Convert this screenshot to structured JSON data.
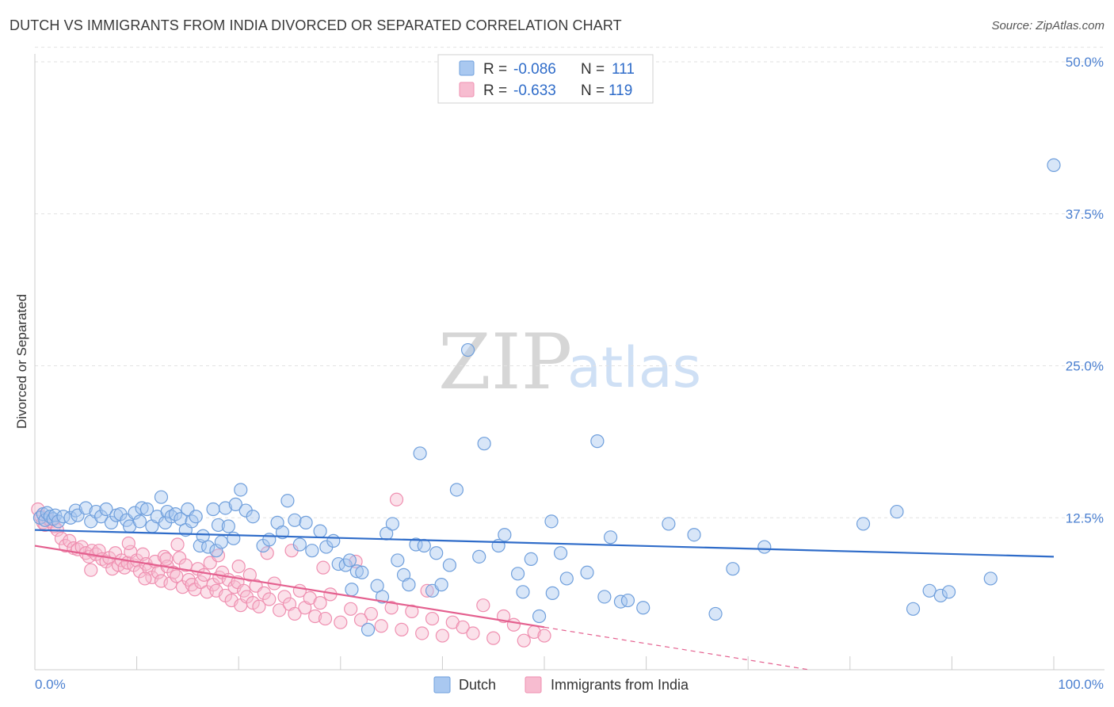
{
  "title": "DUTCH VS IMMIGRANTS FROM INDIA DIVORCED OR SEPARATED CORRELATION CHART",
  "source": "Source: ZipAtlas.com",
  "watermark": {
    "zip": "ZIP",
    "atlas": "atlas"
  },
  "legend": {
    "series": [
      {
        "r_label": "R =",
        "r_value": "-0.086",
        "n_label": "N =",
        "n_value": "111"
      },
      {
        "r_label": "R =",
        "r_value": "-0.633",
        "n_label": "N =",
        "n_value": "119"
      }
    ]
  },
  "chart_data": {
    "type": "scatter",
    "title": "DUTCH VS IMMIGRANTS FROM INDIA DIVORCED OR SEPARATED CORRELATION CHART",
    "xlabel": "",
    "ylabel": "Divorced or Separated",
    "xlim": [
      0,
      100
    ],
    "ylim": [
      0,
      50
    ],
    "x_tick_labels": [
      "0.0%",
      "100.0%"
    ],
    "y_ticks": [
      12.5,
      25.0,
      37.5,
      50.0
    ],
    "y_tick_labels": [
      "12.5%",
      "25.0%",
      "37.5%",
      "50.0%"
    ],
    "grid": true,
    "colors": {
      "dutch_fill": "#a9c8f0",
      "dutch_stroke": "#6f9fdc",
      "dutch_line": "#2f6cc9",
      "india_fill": "#f7bcd0",
      "india_stroke": "#ef8fb0",
      "india_line": "#e4608f"
    },
    "series": [
      {
        "name": "Dutch",
        "trend": {
          "x0": 0,
          "y0": 11.5,
          "x1": 100,
          "y1": 9.3
        },
        "points": [
          [
            0.5,
            12.5
          ],
          [
            0.8,
            12.8
          ],
          [
            1.0,
            12.3
          ],
          [
            1.2,
            12.9
          ],
          [
            1.5,
            12.6
          ],
          [
            1.8,
            12.4
          ],
          [
            2.0,
            12.7
          ],
          [
            2.3,
            12.2
          ],
          [
            2.8,
            12.6
          ],
          [
            3.5,
            12.5
          ],
          [
            4.0,
            13.1
          ],
          [
            4.2,
            12.7
          ],
          [
            5.0,
            13.3
          ],
          [
            5.5,
            12.2
          ],
          [
            6.0,
            13.0
          ],
          [
            6.5,
            12.6
          ],
          [
            7.0,
            13.2
          ],
          [
            7.5,
            12.1
          ],
          [
            8.0,
            12.7
          ],
          [
            8.4,
            12.8
          ],
          [
            9.0,
            12.3
          ],
          [
            9.3,
            11.8
          ],
          [
            9.8,
            12.9
          ],
          [
            10.3,
            12.2
          ],
          [
            10.5,
            13.3
          ],
          [
            11.0,
            13.2
          ],
          [
            11.5,
            11.8
          ],
          [
            12.0,
            12.6
          ],
          [
            12.4,
            14.2
          ],
          [
            12.8,
            12.1
          ],
          [
            13.0,
            13.0
          ],
          [
            13.4,
            12.6
          ],
          [
            13.8,
            12.8
          ],
          [
            14.3,
            12.4
          ],
          [
            14.8,
            11.5
          ],
          [
            15.0,
            13.2
          ],
          [
            15.4,
            12.2
          ],
          [
            15.8,
            12.6
          ],
          [
            16.2,
            10.2
          ],
          [
            16.5,
            11.0
          ],
          [
            17.0,
            10.1
          ],
          [
            17.5,
            13.2
          ],
          [
            17.8,
            9.8
          ],
          [
            18.0,
            11.9
          ],
          [
            18.3,
            10.5
          ],
          [
            18.7,
            13.3
          ],
          [
            19.0,
            11.8
          ],
          [
            19.5,
            10.8
          ],
          [
            19.7,
            13.6
          ],
          [
            20.2,
            14.8
          ],
          [
            20.7,
            13.1
          ],
          [
            21.4,
            12.6
          ],
          [
            22.4,
            10.2
          ],
          [
            23.0,
            10.7
          ],
          [
            23.8,
            12.1
          ],
          [
            24.3,
            11.3
          ],
          [
            24.8,
            13.9
          ],
          [
            25.5,
            12.3
          ],
          [
            26.0,
            10.3
          ],
          [
            26.6,
            12.1
          ],
          [
            27.2,
            9.8
          ],
          [
            28.0,
            11.4
          ],
          [
            28.6,
            10.1
          ],
          [
            29.3,
            10.6
          ],
          [
            29.8,
            8.7
          ],
          [
            30.5,
            8.6
          ],
          [
            30.9,
            9.0
          ],
          [
            31.1,
            6.6
          ],
          [
            31.6,
            8.1
          ],
          [
            32.1,
            8.0
          ],
          [
            32.7,
            3.3
          ],
          [
            33.6,
            6.9
          ],
          [
            34.1,
            6.0
          ],
          [
            34.5,
            11.2
          ],
          [
            35.1,
            12.0
          ],
          [
            35.6,
            9.0
          ],
          [
            36.2,
            7.8
          ],
          [
            36.7,
            7.0
          ],
          [
            37.4,
            10.3
          ],
          [
            37.8,
            17.8
          ],
          [
            38.2,
            10.2
          ],
          [
            39.0,
            6.5
          ],
          [
            39.4,
            9.6
          ],
          [
            39.9,
            7.0
          ],
          [
            40.7,
            8.6
          ],
          [
            41.4,
            14.8
          ],
          [
            42.5,
            26.3
          ],
          [
            43.6,
            9.3
          ],
          [
            44.1,
            18.6
          ],
          [
            45.5,
            10.2
          ],
          [
            46.1,
            11.1
          ],
          [
            47.4,
            7.9
          ],
          [
            47.9,
            6.4
          ],
          [
            48.7,
            9.1
          ],
          [
            49.5,
            4.4
          ],
          [
            50.7,
            12.2
          ],
          [
            50.8,
            6.3
          ],
          [
            51.6,
            9.6
          ],
          [
            52.2,
            7.5
          ],
          [
            54.2,
            8.0
          ],
          [
            55.2,
            18.8
          ],
          [
            55.9,
            6.0
          ],
          [
            56.5,
            10.9
          ],
          [
            57.5,
            5.6
          ],
          [
            58.2,
            5.7
          ],
          [
            59.7,
            5.1
          ],
          [
            62.2,
            12.0
          ],
          [
            64.7,
            11.1
          ],
          [
            66.8,
            4.6
          ],
          [
            68.5,
            8.3
          ],
          [
            71.6,
            10.1
          ],
          [
            81.3,
            12.0
          ],
          [
            84.6,
            13.0
          ],
          [
            86.2,
            5.0
          ],
          [
            87.8,
            6.5
          ],
          [
            88.9,
            6.1
          ],
          [
            89.7,
            6.4
          ],
          [
            93.8,
            7.5
          ],
          [
            100.0,
            41.5
          ]
        ]
      },
      {
        "name": "Immigrants from India",
        "trend": {
          "x0": 0,
          "y0": 10.2,
          "x1": 50,
          "y1": 3.5
        },
        "trend_dashed": {
          "x0": 50,
          "y0": 3.5,
          "x1": 76,
          "y1": 0
        },
        "points": [
          [
            0.3,
            13.2
          ],
          [
            0.6,
            12.6
          ],
          [
            0.8,
            12.1
          ],
          [
            1.0,
            11.9
          ],
          [
            1.3,
            12.4
          ],
          [
            1.6,
            12.2
          ],
          [
            1.9,
            11.8
          ],
          [
            2.2,
            11.5
          ],
          [
            2.6,
            10.8
          ],
          [
            3.0,
            10.2
          ],
          [
            3.4,
            10.6
          ],
          [
            3.8,
            10.0
          ],
          [
            4.2,
            9.9
          ],
          [
            4.6,
            10.1
          ],
          [
            5.0,
            9.6
          ],
          [
            5.3,
            9.3
          ],
          [
            5.6,
            9.8
          ],
          [
            6.0,
            9.5
          ],
          [
            6.3,
            9.8
          ],
          [
            6.6,
            9.1
          ],
          [
            7.0,
            8.9
          ],
          [
            7.3,
            9.2
          ],
          [
            7.6,
            8.3
          ],
          [
            7.9,
            9.6
          ],
          [
            8.2,
            8.6
          ],
          [
            8.5,
            9.0
          ],
          [
            8.8,
            8.4
          ],
          [
            9.1,
            8.8
          ],
          [
            9.4,
            9.7
          ],
          [
            9.7,
            8.6
          ],
          [
            10.0,
            9.0
          ],
          [
            10.3,
            8.1
          ],
          [
            10.6,
            9.5
          ],
          [
            10.9,
            8.7
          ],
          [
            11.2,
            8.3
          ],
          [
            11.5,
            7.6
          ],
          [
            11.8,
            8.9
          ],
          [
            12.1,
            8.0
          ],
          [
            12.4,
            7.3
          ],
          [
            12.7,
            9.3
          ],
          [
            13.0,
            8.5
          ],
          [
            13.3,
            7.1
          ],
          [
            13.6,
            8.0
          ],
          [
            13.9,
            7.7
          ],
          [
            14.2,
            9.2
          ],
          [
            14.5,
            6.8
          ],
          [
            14.8,
            8.6
          ],
          [
            15.1,
            7.4
          ],
          [
            15.4,
            7.0
          ],
          [
            15.7,
            6.6
          ],
          [
            16.0,
            8.3
          ],
          [
            16.3,
            7.2
          ],
          [
            16.6,
            7.8
          ],
          [
            16.9,
            6.4
          ],
          [
            17.2,
            8.8
          ],
          [
            17.5,
            7.0
          ],
          [
            17.8,
            6.5
          ],
          [
            18.1,
            7.6
          ],
          [
            18.4,
            8.0
          ],
          [
            18.7,
            6.1
          ],
          [
            19.0,
            7.4
          ],
          [
            19.3,
            5.7
          ],
          [
            19.6,
            6.8
          ],
          [
            19.9,
            7.2
          ],
          [
            20.2,
            5.3
          ],
          [
            20.5,
            6.5
          ],
          [
            20.8,
            6.0
          ],
          [
            21.1,
            7.8
          ],
          [
            21.4,
            5.5
          ],
          [
            21.7,
            6.9
          ],
          [
            22.0,
            5.2
          ],
          [
            22.5,
            6.3
          ],
          [
            23.0,
            5.8
          ],
          [
            23.5,
            7.1
          ],
          [
            24.0,
            4.9
          ],
          [
            24.5,
            6.0
          ],
          [
            25.0,
            5.4
          ],
          [
            25.5,
            4.6
          ],
          [
            26.0,
            6.5
          ],
          [
            26.5,
            5.1
          ],
          [
            27.0,
            5.9
          ],
          [
            27.5,
            4.4
          ],
          [
            28.0,
            5.5
          ],
          [
            28.5,
            4.2
          ],
          [
            29.0,
            6.2
          ],
          [
            30.0,
            3.9
          ],
          [
            31.0,
            5.0
          ],
          [
            32.0,
            4.1
          ],
          [
            33.0,
            4.6
          ],
          [
            34.0,
            3.6
          ],
          [
            35.0,
            5.1
          ],
          [
            36.0,
            3.3
          ],
          [
            37.0,
            4.8
          ],
          [
            38.0,
            3.0
          ],
          [
            39.0,
            4.2
          ],
          [
            40.0,
            2.8
          ],
          [
            41.0,
            3.9
          ],
          [
            42.0,
            3.5
          ],
          [
            43.0,
            3.0
          ],
          [
            44.0,
            5.3
          ],
          [
            45.0,
            2.6
          ],
          [
            46.0,
            4.4
          ],
          [
            47.0,
            3.7
          ],
          [
            48.0,
            2.4
          ],
          [
            49.0,
            3.1
          ],
          [
            50.0,
            2.8
          ],
          [
            5.5,
            8.2
          ],
          [
            9.2,
            10.4
          ],
          [
            10.8,
            7.5
          ],
          [
            12.9,
            9.1
          ],
          [
            14.0,
            10.3
          ],
          [
            18.0,
            9.4
          ],
          [
            20.0,
            8.5
          ],
          [
            22.8,
            9.6
          ],
          [
            25.2,
            9.8
          ],
          [
            28.3,
            8.4
          ],
          [
            31.5,
            8.9
          ],
          [
            35.5,
            14.0
          ],
          [
            38.5,
            6.5
          ]
        ]
      }
    ]
  },
  "bottom_legend": [
    {
      "label": "Dutch"
    },
    {
      "label": "Immigrants from India"
    }
  ]
}
